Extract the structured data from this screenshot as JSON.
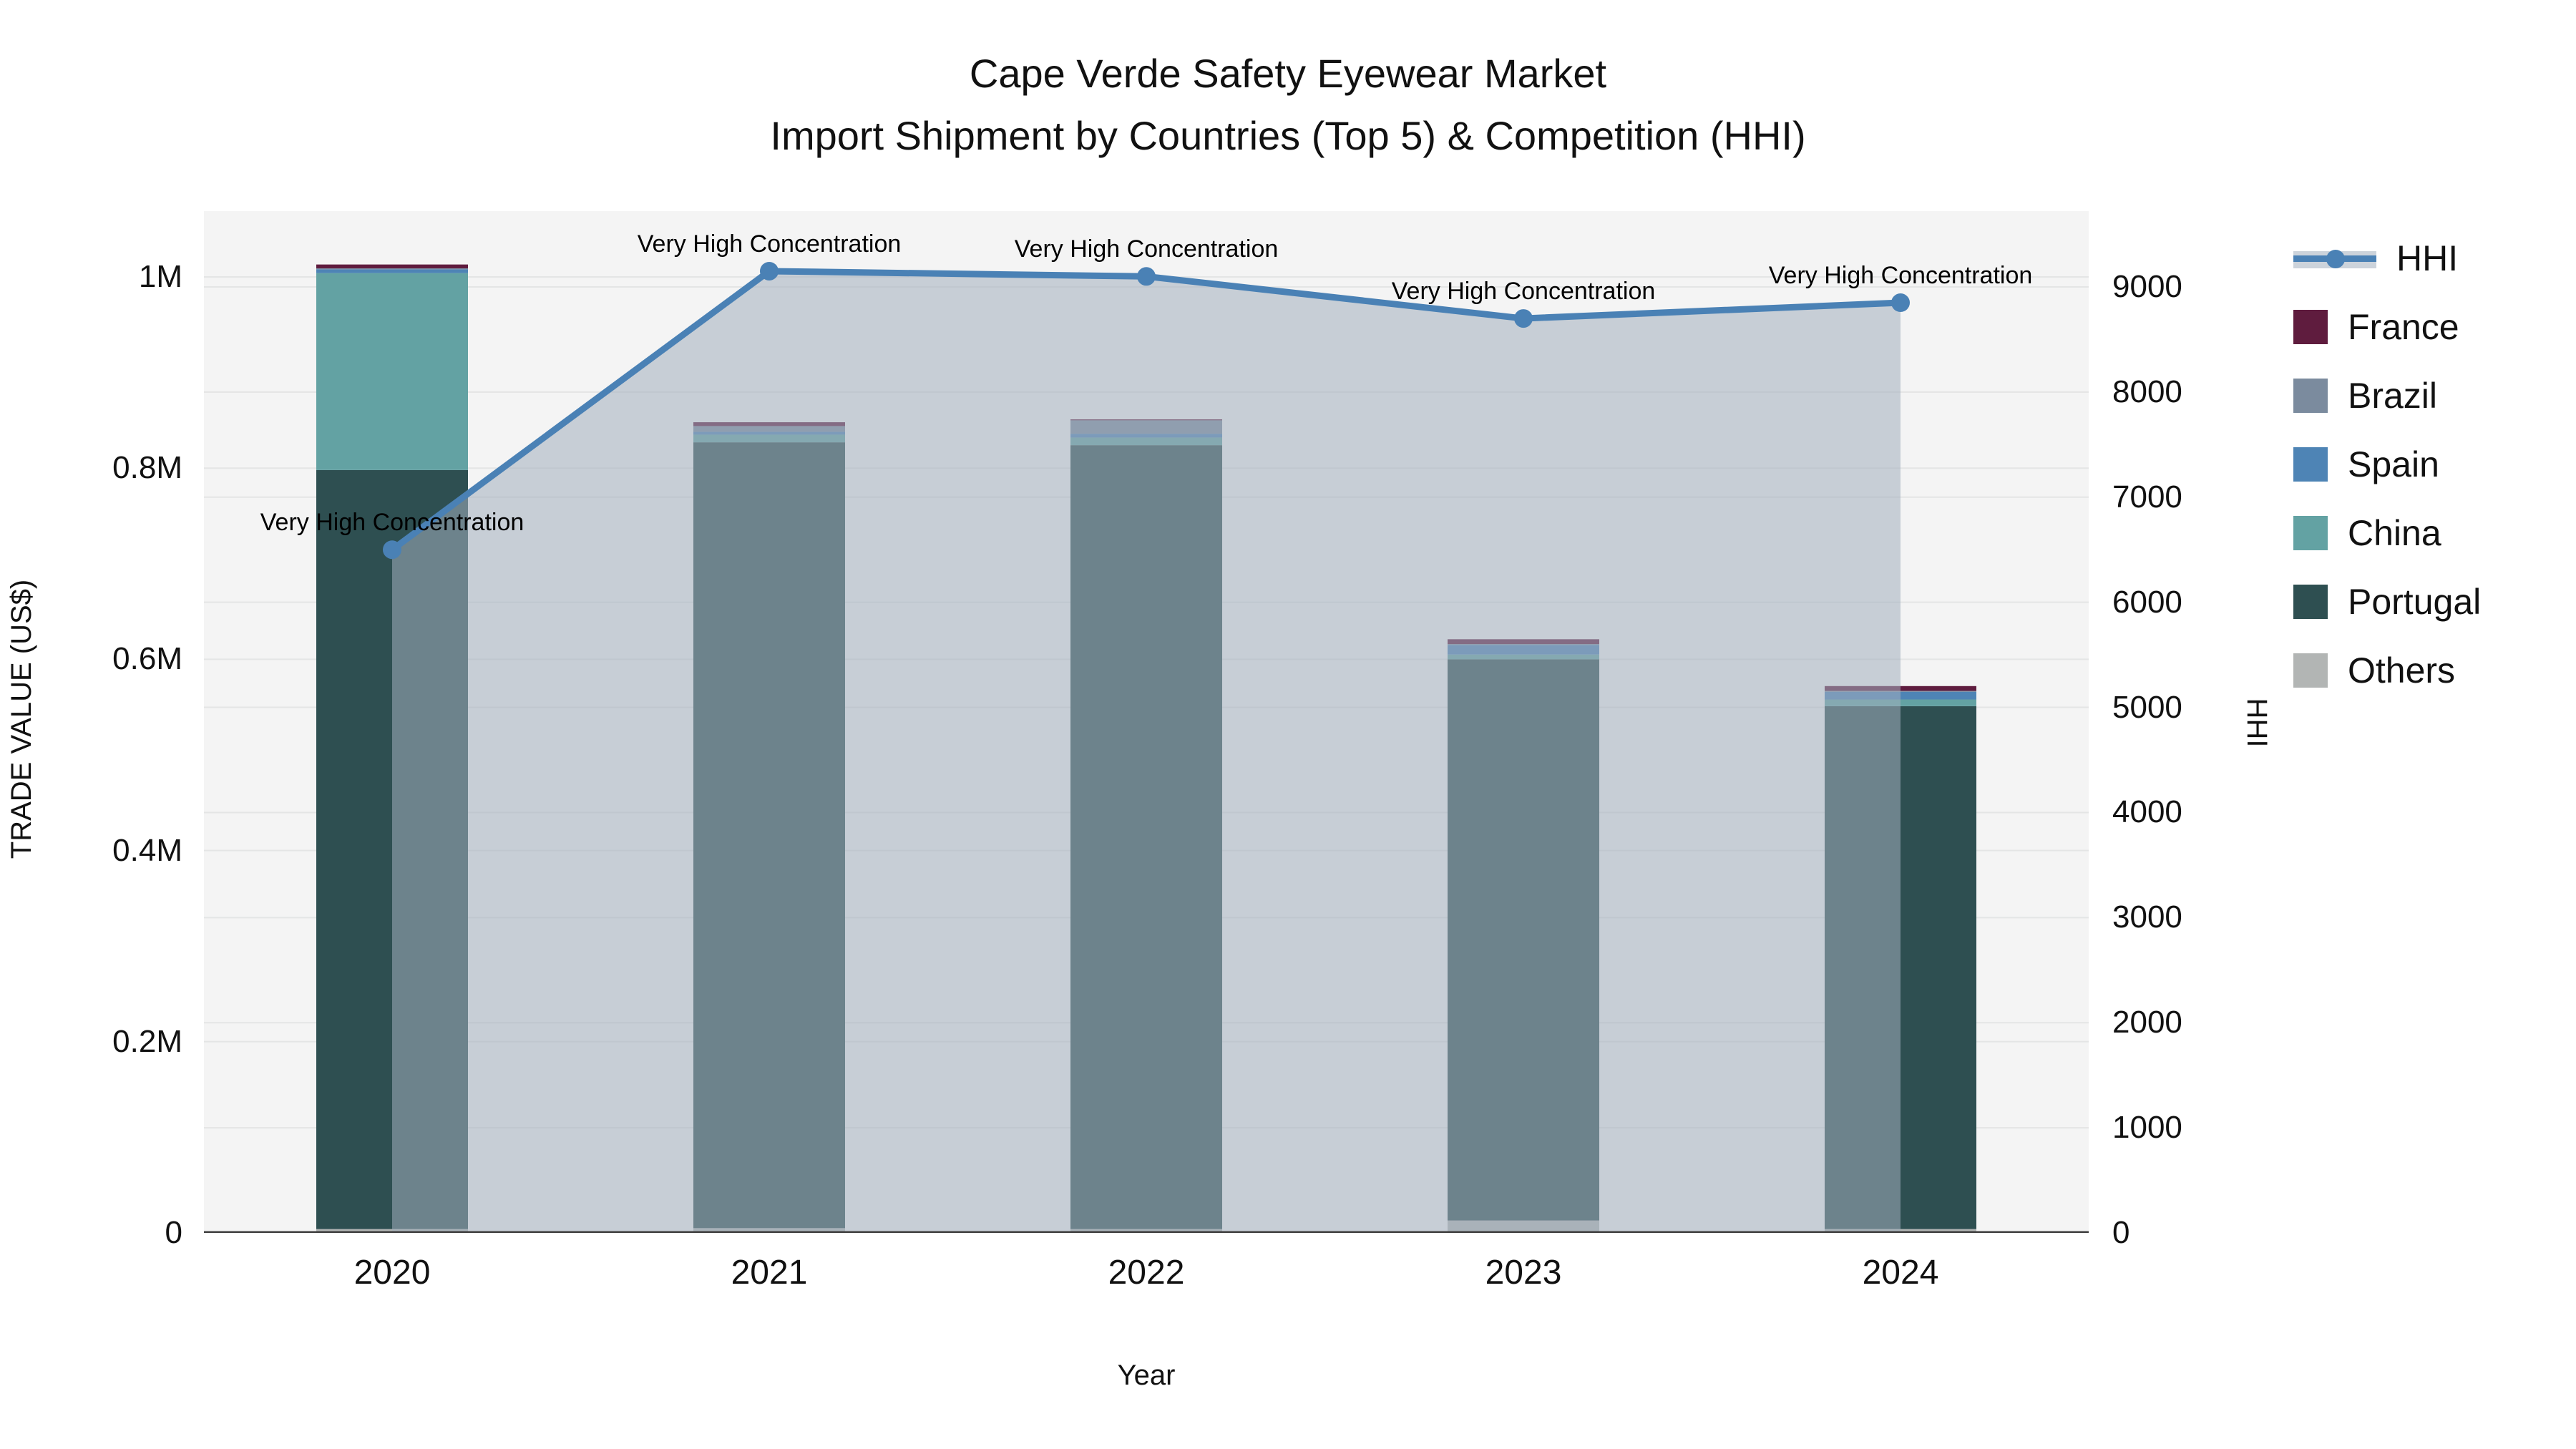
{
  "title": {
    "line1": "Cape Verde Safety Eyewear Market",
    "line2": "Import Shipment by Countries (Top 5) & Competition (HHI)"
  },
  "axes": {
    "left": {
      "title": "TRADE VALUE (US$)",
      "ticks": [
        {
          "label": "0",
          "value": 0
        },
        {
          "label": "0.2M",
          "value": 200000
        },
        {
          "label": "0.4M",
          "value": 400000
        },
        {
          "label": "0.6M",
          "value": 600000
        },
        {
          "label": "0.8M",
          "value": 800000
        },
        {
          "label": "1M",
          "value": 1000000
        }
      ]
    },
    "right": {
      "title": "HHI",
      "ticks": [
        {
          "label": "0",
          "value": 0
        },
        {
          "label": "1000",
          "value": 1000
        },
        {
          "label": "2000",
          "value": 2000
        },
        {
          "label": "3000",
          "value": 3000
        },
        {
          "label": "4000",
          "value": 4000
        },
        {
          "label": "5000",
          "value": 5000
        },
        {
          "label": "6000",
          "value": 6000
        },
        {
          "label": "7000",
          "value": 7000
        },
        {
          "label": "8000",
          "value": 8000
        },
        {
          "label": "9000",
          "value": 9000
        }
      ]
    },
    "x": {
      "title": "Year"
    }
  },
  "legend": {
    "items": [
      {
        "label": "HHI",
        "type": "line",
        "color": "#4a81b5"
      },
      {
        "label": "France",
        "type": "patch",
        "color": "#5f1c3e"
      },
      {
        "label": "Brazil",
        "type": "patch",
        "color": "#7b8b9e"
      },
      {
        "label": "Spain",
        "type": "patch",
        "color": "#4e84b5"
      },
      {
        "label": "China",
        "type": "patch",
        "color": "#63a2a3"
      },
      {
        "label": "Portugal",
        "type": "patch",
        "color": "#2e4f51"
      },
      {
        "label": "Others",
        "type": "patch",
        "color": "#b2b5b4"
      }
    ]
  },
  "colors": {
    "plot_bg": "#f4f4f4",
    "grid": "#e4e5e5",
    "axis_line": "#3f3f3f",
    "hhi_line": "#4a81b5",
    "hhi_area": "rgba(163,175,190,0.55)"
  },
  "chart_data": {
    "type": "bar",
    "subtype": "stacked-bars-with-line-overlay",
    "title": "Cape Verde Safety Eyewear Market — Import Shipment by Countries (Top 5) & Competition (HHI)",
    "xlabel": "Year",
    "ylabel_left": "TRADE VALUE (US$)",
    "ylabel_right": "HHI",
    "categories": [
      "2020",
      "2021",
      "2022",
      "2023",
      "2024"
    ],
    "stack_order_bottom_to_top": [
      "Others",
      "Portugal",
      "China",
      "Spain",
      "Brazil",
      "France"
    ],
    "series": [
      {
        "name": "France",
        "color": "#5f1c3e",
        "values": [
          4000,
          4000,
          1000,
          5000,
          5000
        ]
      },
      {
        "name": "Brazil",
        "color": "#7b8b9e",
        "values": [
          1000,
          6000,
          14000,
          1000,
          1000
        ]
      },
      {
        "name": "Spain",
        "color": "#4e84b5",
        "values": [
          4000,
          3000,
          4000,
          10000,
          8000
        ]
      },
      {
        "name": "China",
        "color": "#63a2a3",
        "values": [
          206000,
          8000,
          8000,
          5000,
          7000
        ]
      },
      {
        "name": "Portugal",
        "color": "#2e4f51",
        "values": [
          794000,
          822000,
          820000,
          587000,
          547000
        ]
      },
      {
        "name": "Others",
        "color": "#b2b5b4",
        "values": [
          4000,
          5000,
          4000,
          13000,
          4000
        ]
      }
    ],
    "bar_totals": [
      1013000,
      848000,
      851000,
      621000,
      572000
    ],
    "hhi": {
      "name": "HHI",
      "color": "#4a81b5",
      "values": [
        6500,
        9150,
        9100,
        8700,
        8850
      ],
      "annotations": [
        "Very High Concentration",
        "Very High Concentration",
        "Very High Concentration",
        "Very High Concentration",
        "Very High Concentration"
      ]
    },
    "ylim_left": [
      0,
      1069000
    ],
    "ylim_right": [
      0,
      9720
    ],
    "grid": true,
    "legend_position": "right"
  }
}
